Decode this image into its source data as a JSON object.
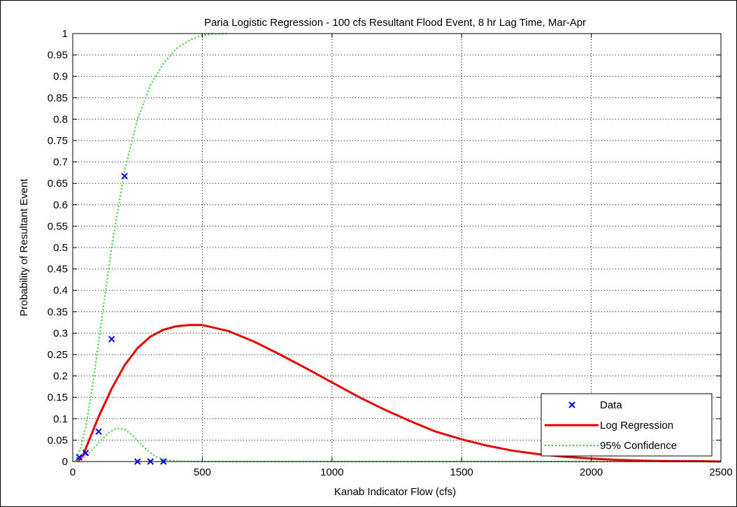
{
  "chart_data": {
    "type": "line",
    "title": "Paria Logistic Regression - 100 cfs Resultant Flood Event, 8 hr Lag Time, Mar-Apr",
    "xlabel": "Kanab Indicator Flow (cfs)",
    "ylabel": "Probability of Resultant Event",
    "xlim": [
      0,
      2500
    ],
    "ylim": [
      0,
      1
    ],
    "xticks": [
      0,
      500,
      1000,
      1500,
      2000,
      2500
    ],
    "yticks": [
      0,
      0.05,
      0.1,
      0.15,
      0.2,
      0.25,
      0.3,
      0.35,
      0.4,
      0.45,
      0.5,
      0.55,
      0.6,
      0.65,
      0.7,
      0.75,
      0.8,
      0.85,
      0.9,
      0.95,
      1
    ],
    "grid": true,
    "legend_position": "bottom-right",
    "series": [
      {
        "name": "Data",
        "kind": "scatter",
        "marker": "x",
        "color": "#0000ff",
        "x": [
          25,
          50,
          100,
          150,
          200,
          250,
          300,
          350
        ],
        "y": [
          0.01,
          0.02,
          0.07,
          0.286,
          0.667,
          0.0,
          0.0,
          0.0
        ]
      },
      {
        "name": "Log Regression",
        "kind": "line",
        "style": "solid",
        "color": "#e60000",
        "x": [
          20,
          40,
          60,
          80,
          100,
          150,
          200,
          250,
          300,
          350,
          400,
          450,
          500,
          600,
          700,
          800,
          900,
          1000,
          1100,
          1200,
          1300,
          1400,
          1500,
          1600,
          1700,
          1800,
          1900,
          2000,
          2100,
          2200,
          2300,
          2400,
          2500
        ],
        "y": [
          0.0,
          0.015,
          0.045,
          0.075,
          0.105,
          0.17,
          0.225,
          0.265,
          0.292,
          0.308,
          0.316,
          0.319,
          0.319,
          0.305,
          0.28,
          0.25,
          0.218,
          0.185,
          0.152,
          0.122,
          0.095,
          0.07,
          0.052,
          0.037,
          0.025,
          0.017,
          0.011,
          0.007,
          0.004,
          0.002,
          0.001,
          0.001,
          0.0
        ]
      },
      {
        "name": "95% Confidence",
        "kind": "line",
        "style": "dotted",
        "color": "#33cc33",
        "x": [
          10,
          30,
          50,
          75,
          100,
          150,
          200,
          250,
          300,
          350,
          400,
          450,
          500,
          550,
          600
        ],
        "y": [
          0.0,
          0.03,
          0.08,
          0.17,
          0.28,
          0.5,
          0.68,
          0.8,
          0.88,
          0.93,
          0.965,
          0.985,
          0.996,
          0.999,
          1.0
        ]
      },
      {
        "name": "95% Confidence lower",
        "kind": "line",
        "style": "dotted",
        "color": "#33cc33",
        "legend": false,
        "x": [
          20,
          50,
          80,
          110,
          140,
          170,
          200,
          230,
          260,
          290,
          320,
          350,
          400,
          500,
          1000,
          2000,
          2500
        ],
        "y": [
          0.0,
          0.012,
          0.03,
          0.05,
          0.068,
          0.078,
          0.075,
          0.062,
          0.042,
          0.025,
          0.012,
          0.005,
          0.001,
          0.0,
          0.0,
          0.0,
          0.0
        ]
      }
    ]
  }
}
